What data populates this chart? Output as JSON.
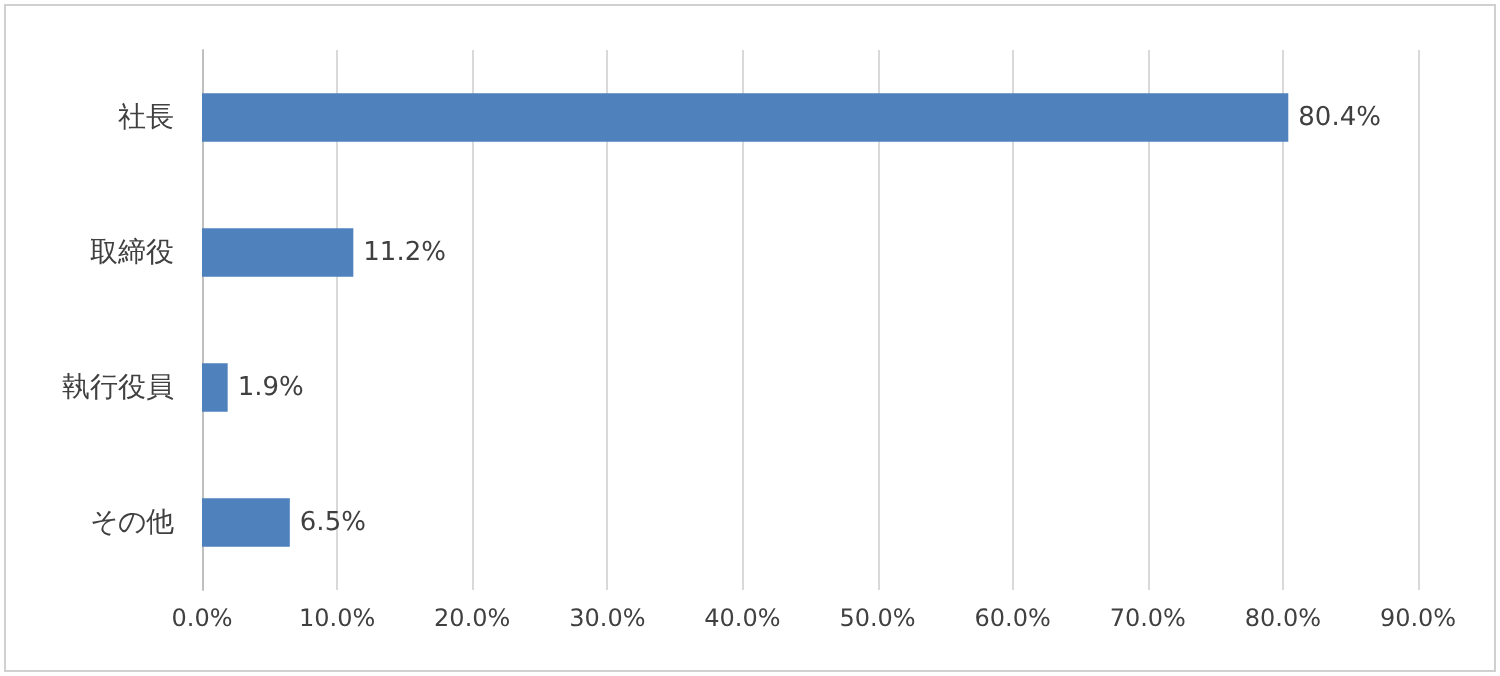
{
  "chart_data": {
    "type": "bar",
    "orientation": "horizontal",
    "categories": [
      "社長",
      "取締役",
      "執行役員",
      "その他"
    ],
    "values": [
      80.4,
      11.2,
      1.9,
      6.5
    ],
    "color": "#4f81bd",
    "value_labels": [
      "80.4%",
      "11.2%",
      "1.9%",
      "6.5%"
    ],
    "xlim": [
      0,
      90
    ],
    "xticks": [
      {
        "value": 0,
        "label": "0.0%"
      },
      {
        "value": 10,
        "label": "10.0%"
      },
      {
        "value": 20,
        "label": "20.0%"
      },
      {
        "value": 30,
        "label": "30.0%"
      },
      {
        "value": 40,
        "label": "40.0%"
      },
      {
        "value": 50,
        "label": "50.0%"
      },
      {
        "value": 60,
        "label": "60.0%"
      },
      {
        "value": 70,
        "label": "70.0%"
      },
      {
        "value": 80,
        "label": "80.0%"
      },
      {
        "value": 90,
        "label": "90.0%"
      }
    ],
    "grid": "x"
  }
}
